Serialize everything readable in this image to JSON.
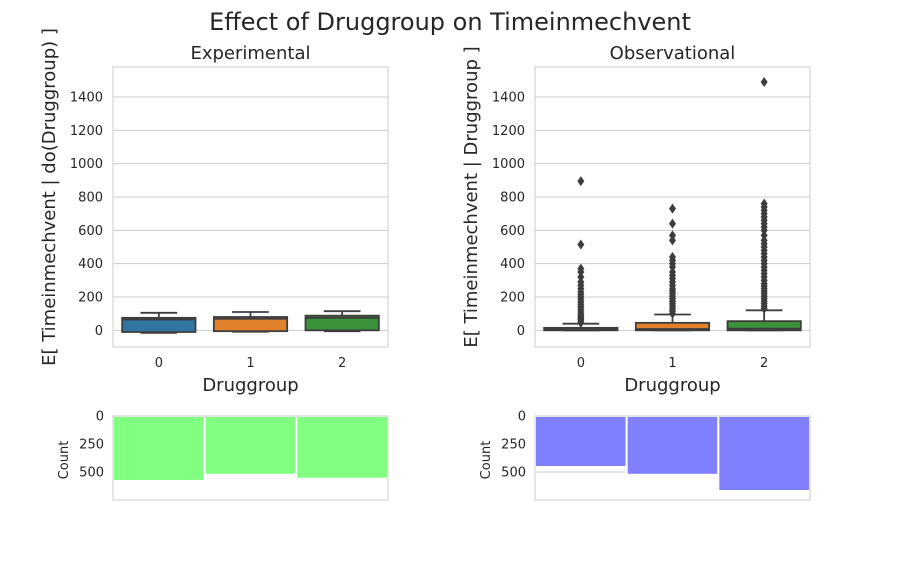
{
  "figure": {
    "title": "Effect of Druggroup on Timeinmechvent"
  },
  "chart_data": [
    {
      "type": "box",
      "title": "Experimental",
      "xlabel": "Druggroup",
      "ylabel": "E[ Timeinmechvent | do(Druggroup) ]",
      "categories": [
        "0",
        "1",
        "2"
      ],
      "ylim": [
        -100,
        1580
      ],
      "yticks": [
        0,
        200,
        400,
        600,
        800,
        1000,
        1200,
        1400
      ],
      "grid": true,
      "colors": [
        "#3274a1",
        "#e1812c",
        "#3a923a"
      ],
      "boxes": [
        {
          "category": "0",
          "whisker_low": -15,
          "q1": -10,
          "median": 65,
          "q3": 75,
          "whisker_high": 105,
          "outliers": []
        },
        {
          "category": "1",
          "whisker_low": -8,
          "q1": -5,
          "median": 70,
          "q3": 80,
          "whisker_high": 110,
          "outliers": []
        },
        {
          "category": "2",
          "whisker_low": -5,
          "q1": 0,
          "median": 75,
          "q3": 88,
          "whisker_high": 115,
          "outliers": []
        }
      ]
    },
    {
      "type": "box",
      "title": "Observational",
      "xlabel": "Druggroup",
      "ylabel": "E[ Timeinmechvent | Druggroup ]",
      "categories": [
        "0",
        "1",
        "2"
      ],
      "ylim": [
        -100,
        1580
      ],
      "yticks": [
        0,
        200,
        400,
        600,
        800,
        1000,
        1200,
        1400
      ],
      "grid": true,
      "colors": [
        "#3274a1",
        "#e1812c",
        "#3a923a"
      ],
      "boxes": [
        {
          "category": "0",
          "whisker_low": 0,
          "q1": 0,
          "median": 5,
          "q3": 15,
          "whisker_high": 40,
          "outliers": [
            45,
            55,
            65,
            75,
            85,
            95,
            110,
            125,
            140,
            155,
            170,
            185,
            200,
            215,
            230,
            250,
            270,
            290,
            320,
            350,
            370,
            515,
            895
          ]
        },
        {
          "category": "1",
          "whisker_low": 0,
          "q1": 0,
          "median": 8,
          "q3": 45,
          "whisker_high": 95,
          "outliers": [
            100,
            115,
            130,
            145,
            160,
            175,
            190,
            205,
            220,
            235,
            250,
            270,
            290,
            310,
            330,
            350,
            380,
            400,
            420,
            440,
            540,
            570,
            640,
            730
          ]
        },
        {
          "category": "2",
          "whisker_low": 0,
          "q1": 0,
          "median": 10,
          "q3": 55,
          "whisker_high": 120,
          "outliers": [
            130,
            145,
            160,
            175,
            190,
            205,
            220,
            235,
            250,
            265,
            280,
            300,
            320,
            340,
            360,
            380,
            400,
            420,
            440,
            460,
            480,
            500,
            520,
            540,
            570,
            600,
            620,
            640,
            660,
            680,
            700,
            720,
            740,
            760,
            1490
          ]
        }
      ]
    },
    {
      "type": "bar",
      "title": "",
      "xlabel": "",
      "ylabel": "Count",
      "categories": [
        "0",
        "1",
        "2"
      ],
      "values": [
        580,
        525,
        560
      ],
      "ylim": [
        0,
        750
      ],
      "yticks": [
        0,
        250,
        500
      ],
      "y_inverted": true,
      "grid": true,
      "color": "#80ff80"
    },
    {
      "type": "bar",
      "title": "",
      "xlabel": "",
      "ylabel": "Count",
      "categories": [
        "0",
        "1",
        "2"
      ],
      "values": [
        455,
        525,
        670
      ],
      "ylim": [
        0,
        750
      ],
      "yticks": [
        0,
        250,
        500
      ],
      "y_inverted": true,
      "grid": true,
      "color": "#8080ff"
    }
  ]
}
